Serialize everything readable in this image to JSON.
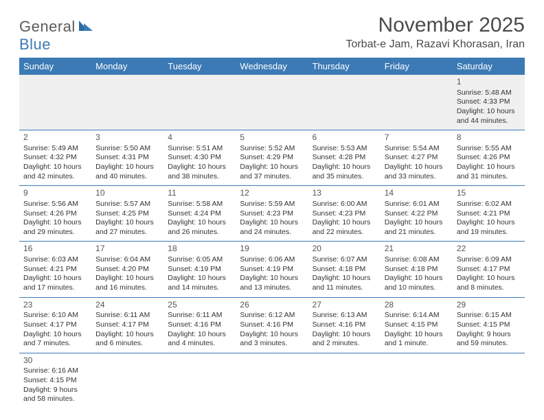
{
  "brand": {
    "part1": "General",
    "part2": "Blue"
  },
  "title": "November 2025",
  "location": "Torbat-e Jam, Razavi Khorasan, Iran",
  "colors": {
    "header_bg": "#3b7ab5",
    "header_text": "#ffffff",
    "cell_border": "#3b7ab5",
    "empty_bg": "#f0f0f0",
    "body_text": "#333333",
    "title_text": "#4a4a4a"
  },
  "daynames": [
    "Sunday",
    "Monday",
    "Tuesday",
    "Wednesday",
    "Thursday",
    "Friday",
    "Saturday"
  ],
  "weeks": [
    [
      null,
      null,
      null,
      null,
      null,
      null,
      {
        "n": "1",
        "sr": "Sunrise: 5:48 AM",
        "ss": "Sunset: 4:33 PM",
        "d1": "Daylight: 10 hours",
        "d2": "and 44 minutes."
      }
    ],
    [
      {
        "n": "2",
        "sr": "Sunrise: 5:49 AM",
        "ss": "Sunset: 4:32 PM",
        "d1": "Daylight: 10 hours",
        "d2": "and 42 minutes."
      },
      {
        "n": "3",
        "sr": "Sunrise: 5:50 AM",
        "ss": "Sunset: 4:31 PM",
        "d1": "Daylight: 10 hours",
        "d2": "and 40 minutes."
      },
      {
        "n": "4",
        "sr": "Sunrise: 5:51 AM",
        "ss": "Sunset: 4:30 PM",
        "d1": "Daylight: 10 hours",
        "d2": "and 38 minutes."
      },
      {
        "n": "5",
        "sr": "Sunrise: 5:52 AM",
        "ss": "Sunset: 4:29 PM",
        "d1": "Daylight: 10 hours",
        "d2": "and 37 minutes."
      },
      {
        "n": "6",
        "sr": "Sunrise: 5:53 AM",
        "ss": "Sunset: 4:28 PM",
        "d1": "Daylight: 10 hours",
        "d2": "and 35 minutes."
      },
      {
        "n": "7",
        "sr": "Sunrise: 5:54 AM",
        "ss": "Sunset: 4:27 PM",
        "d1": "Daylight: 10 hours",
        "d2": "and 33 minutes."
      },
      {
        "n": "8",
        "sr": "Sunrise: 5:55 AM",
        "ss": "Sunset: 4:26 PM",
        "d1": "Daylight: 10 hours",
        "d2": "and 31 minutes."
      }
    ],
    [
      {
        "n": "9",
        "sr": "Sunrise: 5:56 AM",
        "ss": "Sunset: 4:26 PM",
        "d1": "Daylight: 10 hours",
        "d2": "and 29 minutes."
      },
      {
        "n": "10",
        "sr": "Sunrise: 5:57 AM",
        "ss": "Sunset: 4:25 PM",
        "d1": "Daylight: 10 hours",
        "d2": "and 27 minutes."
      },
      {
        "n": "11",
        "sr": "Sunrise: 5:58 AM",
        "ss": "Sunset: 4:24 PM",
        "d1": "Daylight: 10 hours",
        "d2": "and 26 minutes."
      },
      {
        "n": "12",
        "sr": "Sunrise: 5:59 AM",
        "ss": "Sunset: 4:23 PM",
        "d1": "Daylight: 10 hours",
        "d2": "and 24 minutes."
      },
      {
        "n": "13",
        "sr": "Sunrise: 6:00 AM",
        "ss": "Sunset: 4:23 PM",
        "d1": "Daylight: 10 hours",
        "d2": "and 22 minutes."
      },
      {
        "n": "14",
        "sr": "Sunrise: 6:01 AM",
        "ss": "Sunset: 4:22 PM",
        "d1": "Daylight: 10 hours",
        "d2": "and 21 minutes."
      },
      {
        "n": "15",
        "sr": "Sunrise: 6:02 AM",
        "ss": "Sunset: 4:21 PM",
        "d1": "Daylight: 10 hours",
        "d2": "and 19 minutes."
      }
    ],
    [
      {
        "n": "16",
        "sr": "Sunrise: 6:03 AM",
        "ss": "Sunset: 4:21 PM",
        "d1": "Daylight: 10 hours",
        "d2": "and 17 minutes."
      },
      {
        "n": "17",
        "sr": "Sunrise: 6:04 AM",
        "ss": "Sunset: 4:20 PM",
        "d1": "Daylight: 10 hours",
        "d2": "and 16 minutes."
      },
      {
        "n": "18",
        "sr": "Sunrise: 6:05 AM",
        "ss": "Sunset: 4:19 PM",
        "d1": "Daylight: 10 hours",
        "d2": "and 14 minutes."
      },
      {
        "n": "19",
        "sr": "Sunrise: 6:06 AM",
        "ss": "Sunset: 4:19 PM",
        "d1": "Daylight: 10 hours",
        "d2": "and 13 minutes."
      },
      {
        "n": "20",
        "sr": "Sunrise: 6:07 AM",
        "ss": "Sunset: 4:18 PM",
        "d1": "Daylight: 10 hours",
        "d2": "and 11 minutes."
      },
      {
        "n": "21",
        "sr": "Sunrise: 6:08 AM",
        "ss": "Sunset: 4:18 PM",
        "d1": "Daylight: 10 hours",
        "d2": "and 10 minutes."
      },
      {
        "n": "22",
        "sr": "Sunrise: 6:09 AM",
        "ss": "Sunset: 4:17 PM",
        "d1": "Daylight: 10 hours",
        "d2": "and 8 minutes."
      }
    ],
    [
      {
        "n": "23",
        "sr": "Sunrise: 6:10 AM",
        "ss": "Sunset: 4:17 PM",
        "d1": "Daylight: 10 hours",
        "d2": "and 7 minutes."
      },
      {
        "n": "24",
        "sr": "Sunrise: 6:11 AM",
        "ss": "Sunset: 4:17 PM",
        "d1": "Daylight: 10 hours",
        "d2": "and 6 minutes."
      },
      {
        "n": "25",
        "sr": "Sunrise: 6:11 AM",
        "ss": "Sunset: 4:16 PM",
        "d1": "Daylight: 10 hours",
        "d2": "and 4 minutes."
      },
      {
        "n": "26",
        "sr": "Sunrise: 6:12 AM",
        "ss": "Sunset: 4:16 PM",
        "d1": "Daylight: 10 hours",
        "d2": "and 3 minutes."
      },
      {
        "n": "27",
        "sr": "Sunrise: 6:13 AM",
        "ss": "Sunset: 4:16 PM",
        "d1": "Daylight: 10 hours",
        "d2": "and 2 minutes."
      },
      {
        "n": "28",
        "sr": "Sunrise: 6:14 AM",
        "ss": "Sunset: 4:15 PM",
        "d1": "Daylight: 10 hours",
        "d2": "and 1 minute."
      },
      {
        "n": "29",
        "sr": "Sunrise: 6:15 AM",
        "ss": "Sunset: 4:15 PM",
        "d1": "Daylight: 9 hours",
        "d2": "and 59 minutes."
      }
    ],
    [
      {
        "n": "30",
        "sr": "Sunrise: 6:16 AM",
        "ss": "Sunset: 4:15 PM",
        "d1": "Daylight: 9 hours",
        "d2": "and 58 minutes."
      },
      null,
      null,
      null,
      null,
      null,
      null
    ]
  ]
}
